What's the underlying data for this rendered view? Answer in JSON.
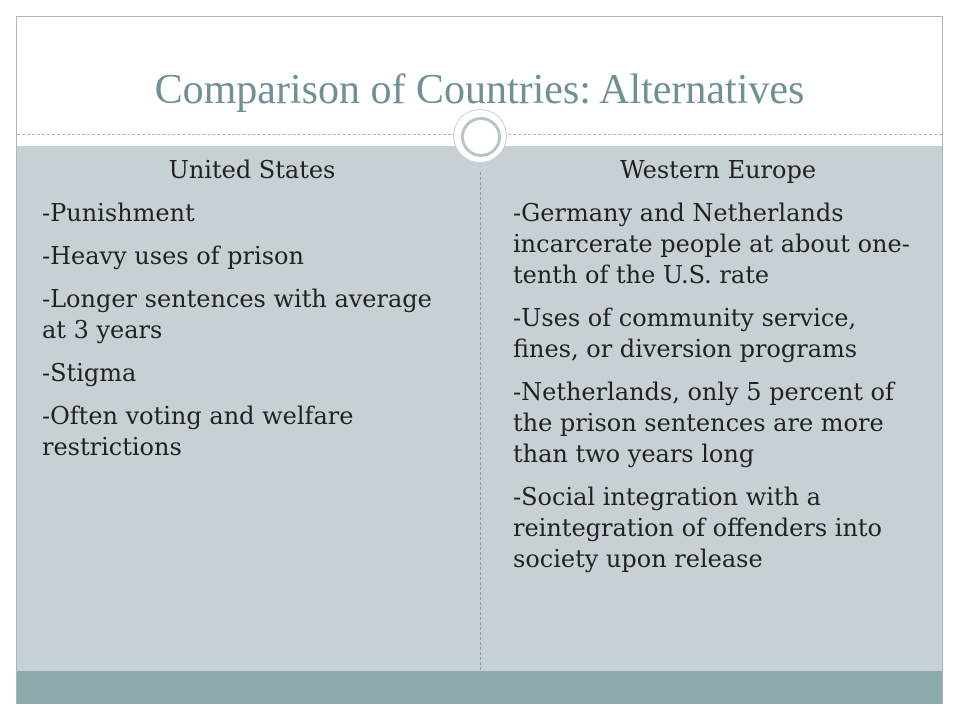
{
  "slide": {
    "title": "Comparison of Countries: Alternatives",
    "left": {
      "heading": "United States",
      "items": [
        "-Punishment",
        "-Heavy uses of prison",
        "-Longer sentences with average at 3 years",
        "-Stigma",
        "-Often voting and welfare restrictions"
      ]
    },
    "right": {
      "heading": "Western Europe",
      "items": [
        "-Germany  and Netherlands incarcerate people at about one-tenth of the U.S. rate",
        "-Uses of community service, fines, or diversion programs",
        "-Netherlands, only 5 percent of the prison sentences  are more than two years long",
        "-Social integration with a reintegration of offenders into society upon release"
      ]
    }
  },
  "theme": {
    "title_color": "#6f9195",
    "content_background": "#c7d0d5",
    "footer_band_color": "#8daaaa"
  }
}
